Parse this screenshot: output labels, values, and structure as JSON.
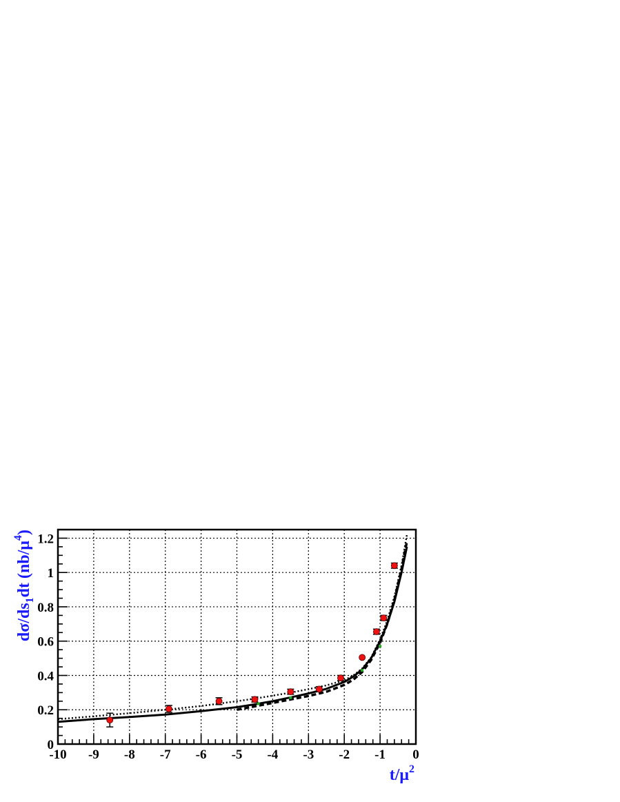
{
  "chart_data": {
    "type": "scatter",
    "title": "",
    "xlabel": {
      "base": "t/μ",
      "sup": "2"
    },
    "ylabel": {
      "p1": "dσ/ds",
      "sub": "1",
      "p2": "dt (nb/μ",
      "sup": "4",
      "p3": ")"
    },
    "xlim": [
      -10,
      0
    ],
    "ylim": [
      0,
      1.25
    ],
    "x_ticks": [
      -10,
      -9,
      -8,
      -7,
      -6,
      -5,
      -4,
      -3,
      -2,
      -1,
      0
    ],
    "x_tick_labels": [
      "-10",
      "-9",
      "-8",
      "-7",
      "-6",
      "-5",
      "-4",
      "-3",
      "-2",
      "-1",
      "0"
    ],
    "y_ticks": [
      0,
      0.2,
      0.4,
      0.6,
      0.8,
      1.0,
      1.2
    ],
    "y_tick_labels": [
      "0",
      "0.2",
      "0.4",
      "0.6",
      "0.8",
      "1",
      "1.2"
    ],
    "grid": true,
    "colors": {
      "axis_title": "#1a1aff",
      "points": "#ee1111",
      "point_edge": "#550000",
      "curves": "#000000",
      "green_marker": "#22aa22"
    },
    "points": {
      "x": [
        -8.55,
        -6.9,
        -5.5,
        -4.5,
        -3.5,
        -2.7,
        -2.1,
        -1.5,
        -1.1,
        -0.9,
        -0.6
      ],
      "y": [
        0.14,
        0.205,
        0.25,
        0.26,
        0.305,
        0.32,
        0.385,
        0.505,
        0.655,
        0.735,
        1.04
      ],
      "yerr": [
        0.04,
        0.02,
        0.02,
        0.015,
        0.015,
        0.015,
        0.015,
        0.0,
        0.015,
        0.015,
        0.015
      ]
    },
    "green_markers": {
      "x": [
        -4.4,
        -3.5,
        -2.7,
        -1.5,
        -1.0
      ],
      "y": [
        0.235,
        0.27,
        0.31,
        0.43,
        0.57
      ]
    },
    "series": [
      {
        "style": "solid",
        "x": [
          -10,
          -9,
          -8,
          -7,
          -6,
          -5,
          -4.5,
          -4,
          -3.5,
          -3,
          -2.5,
          -2,
          -1.75,
          -1.5,
          -1.25,
          -1,
          -0.8,
          -0.6,
          -0.4,
          -0.25
        ],
        "y": [
          0.13,
          0.145,
          0.158,
          0.172,
          0.192,
          0.215,
          0.232,
          0.25,
          0.272,
          0.295,
          0.322,
          0.362,
          0.393,
          0.435,
          0.5,
          0.6,
          0.7,
          0.83,
          1.0,
          1.15
        ]
      },
      {
        "style": "dashed",
        "x": [
          -5,
          -4.5,
          -4,
          -3.5,
          -3,
          -2.5,
          -2,
          -1.75,
          -1.5,
          -1.25,
          -1,
          -0.8,
          -0.6,
          -0.4,
          -0.25
        ],
        "y": [
          0.2,
          0.22,
          0.24,
          0.26,
          0.28,
          0.305,
          0.345,
          0.375,
          0.42,
          0.49,
          0.59,
          0.7,
          0.84,
          1.02,
          1.18
        ]
      },
      {
        "style": "dotted",
        "x": [
          -10,
          -9,
          -8,
          -7,
          -6,
          -5,
          -4.5,
          -4,
          -3.5,
          -3,
          -2.5,
          -2,
          -1.75,
          -1.5,
          -1.25,
          -1,
          -0.8,
          -0.6,
          -0.4,
          -0.25
        ],
        "y": [
          0.145,
          0.162,
          0.18,
          0.2,
          0.222,
          0.25,
          0.265,
          0.282,
          0.3,
          0.32,
          0.342,
          0.372,
          0.4,
          0.44,
          0.505,
          0.61,
          0.72,
          0.86,
          1.04,
          1.22
        ]
      }
    ]
  }
}
